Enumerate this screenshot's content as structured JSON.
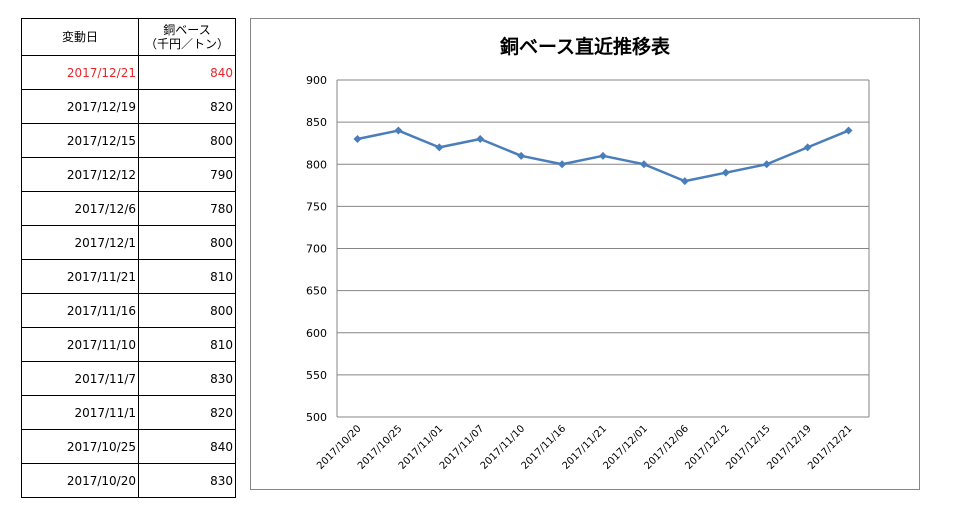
{
  "table": {
    "header_date": "変動日",
    "header_price_line1": "銅ベース",
    "header_price_line2": "（千円／トン）",
    "rows": [
      {
        "date": "2017/12/21",
        "price": "840",
        "highlight": true
      },
      {
        "date": "2017/12/19",
        "price": "820"
      },
      {
        "date": "2017/12/15",
        "price": "800"
      },
      {
        "date": "2017/12/12",
        "price": "790"
      },
      {
        "date": "2017/12/6",
        "price": "780"
      },
      {
        "date": "2017/12/1",
        "price": "800"
      },
      {
        "date": "2017/11/21",
        "price": "810"
      },
      {
        "date": "2017/11/16",
        "price": "800"
      },
      {
        "date": "2017/11/10",
        "price": "810"
      },
      {
        "date": "2017/11/7",
        "price": "830"
      },
      {
        "date": "2017/11/1",
        "price": "820"
      },
      {
        "date": "2017/10/25",
        "price": "840"
      },
      {
        "date": "2017/10/20",
        "price": "830"
      }
    ],
    "highlight_color": "#e8262b"
  },
  "chart_data": {
    "type": "line",
    "title": "銅ベース直近推移表",
    "x": [
      "2017/10/20",
      "2017/10/25",
      "2017/11/01",
      "2017/11/07",
      "2017/11/10",
      "2017/11/16",
      "2017/11/21",
      "2017/12/01",
      "2017/12/06",
      "2017/12/12",
      "2017/12/15",
      "2017/12/19",
      "2017/12/21"
    ],
    "series": [
      {
        "values": [
          830,
          840,
          820,
          830,
          810,
          800,
          810,
          800,
          780,
          790,
          800,
          820,
          840
        ],
        "color": "#4a7ebb"
      }
    ],
    "ylim": [
      500,
      900
    ],
    "yticks": [
      500,
      550,
      600,
      650,
      700,
      750,
      800,
      850,
      900
    ],
    "grid": true,
    "marker": "diamond",
    "legend": "none"
  }
}
